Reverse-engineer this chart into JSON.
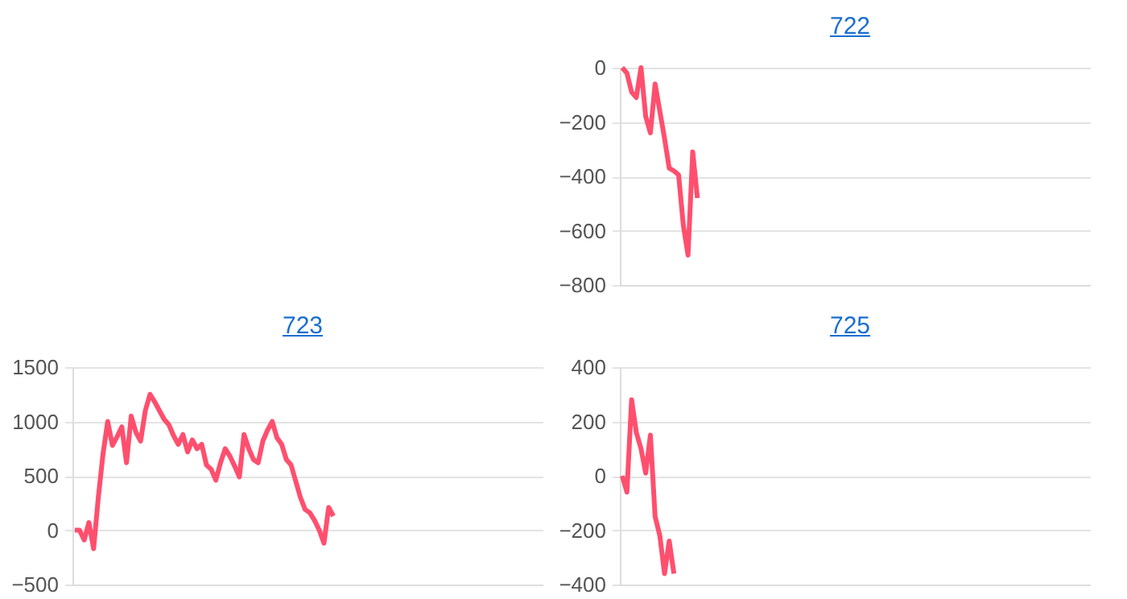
{
  "chart_data": [
    {
      "type": "line",
      "title": "722",
      "categories": [
        null,
        null,
        null,
        null,
        null,
        null,
        null,
        null,
        null,
        null,
        null,
        null,
        null,
        null,
        null,
        null,
        null,
        null,
        null,
        null,
        null,
        null,
        null,
        null,
        null,
        null,
        null,
        null,
        null,
        null,
        null,
        null,
        null,
        null,
        null,
        null,
        null,
        null,
        null,
        null,
        null,
        null,
        null,
        null,
        null,
        null,
        null,
        null,
        null,
        null,
        null,
        null,
        null,
        null,
        null,
        null,
        null,
        null,
        null,
        null,
        null,
        null,
        null,
        null,
        null,
        null,
        null,
        null,
        null,
        null,
        null,
        null,
        null,
        null,
        null,
        null,
        null,
        null,
        null,
        null,
        null,
        null,
        null,
        null,
        null,
        null,
        null,
        null,
        null,
        null,
        null,
        null,
        null,
        null,
        null,
        null,
        null,
        null,
        null,
        null
      ],
      "series": [
        {
          "color": "#ff4f6e",
          "values": [
            0,
            -20,
            -90,
            -110,
            0,
            -180,
            -240,
            -60,
            -160,
            -260,
            -370,
            -380,
            -395,
            -580,
            -690,
            -310,
            -480,
            null,
            null,
            null,
            null,
            null,
            null,
            null,
            null,
            null,
            null,
            null,
            null,
            null,
            null,
            null,
            null,
            null,
            null,
            null,
            null,
            null,
            null,
            null,
            null,
            null,
            null,
            null,
            null,
            null,
            null,
            null,
            null,
            null,
            null,
            null,
            null,
            null,
            null,
            null,
            null,
            null,
            null,
            null,
            null,
            null,
            null,
            null,
            null,
            null,
            null,
            null,
            null,
            null,
            null,
            null,
            null,
            null,
            null,
            null,
            null,
            null,
            null,
            null,
            null,
            null,
            null,
            null,
            null,
            null,
            null,
            null,
            null,
            null,
            null,
            null,
            null,
            null,
            null,
            null,
            null,
            null,
            null,
            null
          ]
        }
      ],
      "ylim": [
        -800,
        0
      ],
      "yticks": [
        -800,
        -600,
        -400,
        -200,
        0
      ],
      "grid": "y",
      "tick_labels": "y"
    },
    {
      "type": "line",
      "title": "723",
      "categories": [
        null,
        null,
        null,
        null,
        null,
        null,
        null,
        null,
        null,
        null,
        null,
        null,
        null,
        null,
        null,
        null,
        null,
        null,
        null,
        null,
        null,
        null,
        null,
        null,
        null,
        null,
        null,
        null,
        null,
        null,
        null,
        null,
        null,
        null,
        null,
        null,
        null,
        null,
        null,
        null,
        null,
        null,
        null,
        null,
        null,
        null,
        null,
        null,
        null,
        null,
        null,
        null,
        null,
        null,
        null,
        null,
        null,
        null,
        null,
        null,
        null,
        null,
        null,
        null,
        null,
        null,
        null,
        null,
        null,
        null,
        null,
        null,
        null,
        null,
        null,
        null,
        null,
        null,
        null,
        null,
        null,
        null,
        null,
        null,
        null,
        null,
        null,
        null,
        null,
        null,
        null,
        null,
        null,
        null,
        null,
        null,
        null,
        null,
        null,
        null
      ],
      "series": [
        {
          "color": "#ff4f6e",
          "values": [
            0,
            0,
            -90,
            70,
            -170,
            300,
            700,
            1000,
            780,
            860,
            950,
            620,
            1050,
            900,
            820,
            1100,
            1250,
            1180,
            1100,
            1020,
            970,
            870,
            790,
            880,
            720,
            830,
            750,
            790,
            600,
            560,
            460,
            620,
            750,
            680,
            590,
            490,
            880,
            750,
            650,
            620,
            820,
            920,
            1000,
            850,
            790,
            650,
            600,
            450,
            300,
            190,
            160,
            90,
            0,
            -120,
            210,
            130,
            null,
            null,
            null,
            null,
            null,
            null,
            null,
            null,
            null,
            null,
            null,
            null,
            null,
            null,
            null,
            null,
            null,
            null,
            null,
            null,
            null,
            null,
            null,
            null,
            null,
            null,
            null,
            null,
            null,
            null,
            null,
            null,
            null,
            null,
            null,
            null,
            null,
            null,
            null,
            null,
            null,
            null,
            null,
            null
          ]
        }
      ],
      "ylim": [
        -500,
        1500
      ],
      "yticks": [
        -500,
        0,
        500,
        1000,
        1500
      ],
      "grid": "y",
      "tick_labels": "y"
    },
    {
      "type": "line",
      "title": "725",
      "categories": [
        null,
        null,
        null,
        null,
        null,
        null,
        null,
        null,
        null,
        null,
        null,
        null,
        null,
        null,
        null,
        null,
        null,
        null,
        null,
        null,
        null,
        null,
        null,
        null,
        null,
        null,
        null,
        null,
        null,
        null,
        null,
        null,
        null,
        null,
        null,
        null,
        null,
        null,
        null,
        null,
        null,
        null,
        null,
        null,
        null,
        null,
        null,
        null,
        null,
        null,
        null,
        null,
        null,
        null,
        null,
        null,
        null,
        null,
        null,
        null,
        null,
        null,
        null,
        null,
        null,
        null,
        null,
        null,
        null,
        null,
        null,
        null,
        null,
        null,
        null,
        null,
        null,
        null,
        null,
        null,
        null,
        null,
        null,
        null,
        null,
        null,
        null,
        null,
        null,
        null,
        null,
        null,
        null,
        null,
        null,
        null,
        null,
        null,
        null,
        null
      ],
      "series": [
        {
          "color": "#ff4f6e",
          "values": [
            0,
            -60,
            280,
            160,
            100,
            10,
            150,
            -150,
            -220,
            -360,
            -240,
            -360,
            null,
            null,
            null,
            null,
            null,
            null,
            null,
            null,
            null,
            null,
            null,
            null,
            null,
            null,
            null,
            null,
            null,
            null,
            null,
            null,
            null,
            null,
            null,
            null,
            null,
            null,
            null,
            null,
            null,
            null,
            null,
            null,
            null,
            null,
            null,
            null,
            null,
            null,
            null,
            null,
            null,
            null,
            null,
            null,
            null,
            null,
            null,
            null,
            null,
            null,
            null,
            null,
            null,
            null,
            null,
            null,
            null,
            null,
            null,
            null,
            null,
            null,
            null,
            null,
            null,
            null,
            null,
            null,
            null,
            null,
            null,
            null,
            null,
            null,
            null,
            null,
            null,
            null,
            null,
            null,
            null,
            null,
            null,
            null,
            null,
            null,
            null,
            null
          ]
        }
      ],
      "ylim": [
        -400,
        400
      ],
      "yticks": [
        -400,
        -200,
        0,
        200,
        400
      ],
      "grid": "y",
      "tick_labels": "y"
    }
  ]
}
